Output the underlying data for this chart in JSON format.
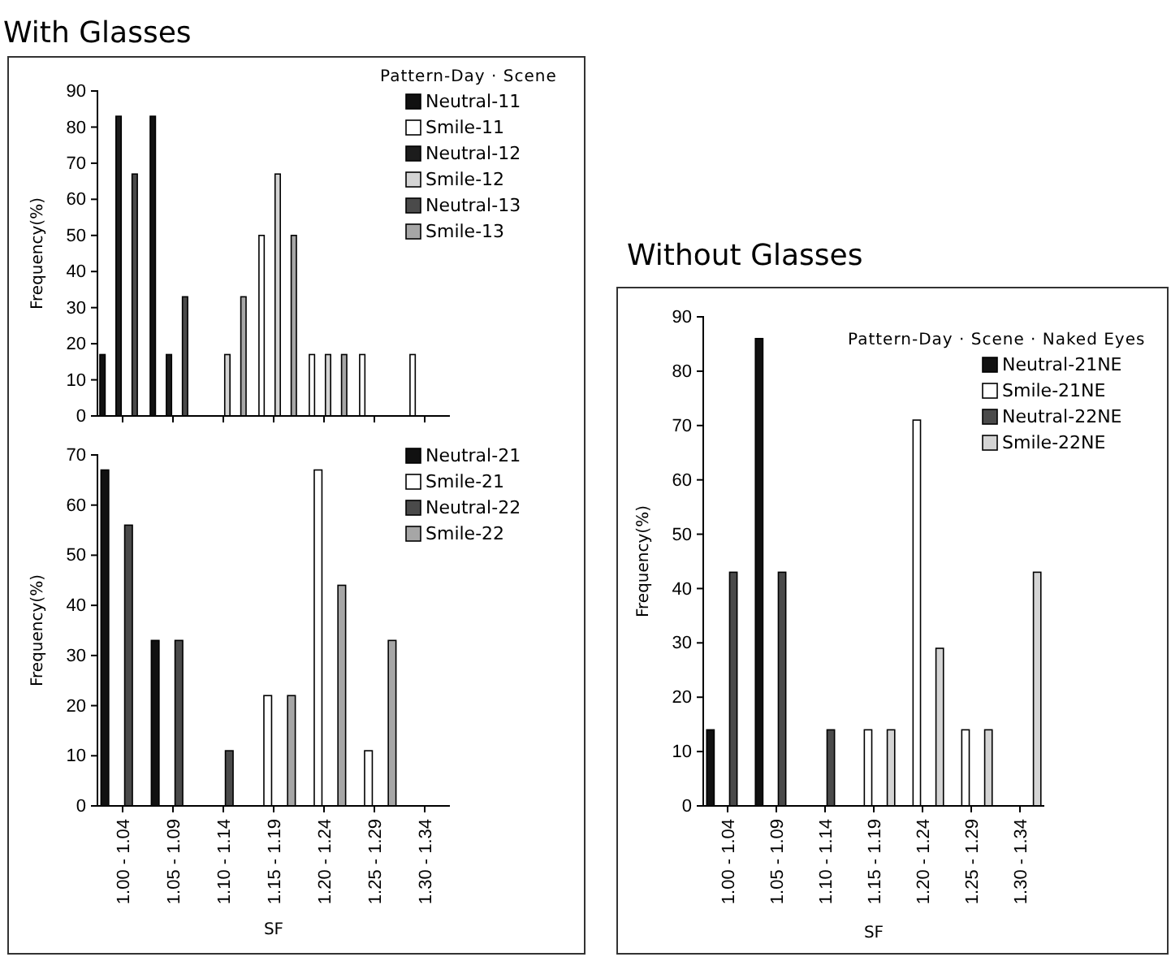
{
  "chart_data": [
    {
      "type": "bar",
      "title": "With Glasses",
      "ylabel": "Frequency(%)",
      "legend_title": "Pattern-Day · Scene",
      "categories": [
        null,
        null,
        null,
        null,
        null,
        null,
        null
      ],
      "ylim": [
        0,
        90
      ],
      "yticks": [
        0,
        10,
        20,
        30,
        40,
        50,
        60,
        70,
        80,
        90
      ],
      "tick_labels": "y",
      "legend": "top right",
      "grid": false,
      "series": [
        {
          "name": "Neutral-11",
          "color": "#111111",
          "values": [
            17,
            83,
            0,
            0,
            0,
            0,
            0
          ]
        },
        {
          "name": "Smile-11",
          "color": "#ffffff",
          "values": [
            0,
            0,
            0,
            50,
            17,
            17,
            17
          ]
        },
        {
          "name": "Neutral-12",
          "color": "#1c1c1c",
          "values": [
            83,
            17,
            0,
            0,
            0,
            0,
            0
          ]
        },
        {
          "name": "Smile-12",
          "color": "#d4d4d4",
          "values": [
            0,
            0,
            17,
            67,
            17,
            0,
            0
          ]
        },
        {
          "name": "Neutral-13",
          "color": "#4a4a4a",
          "values": [
            67,
            33,
            0,
            0,
            0,
            0,
            0
          ]
        },
        {
          "name": "Smile-13",
          "color": "#a6a6a6",
          "values": [
            0,
            0,
            33,
            50,
            17,
            0,
            0
          ]
        }
      ]
    },
    {
      "type": "bar",
      "xlabel": "SF",
      "ylabel": "Frequency(%)",
      "categories": [
        "1.00 - 1.04",
        "1.05 - 1.09",
        "1.10 - 1.14",
        "1.15 - 1.19",
        "1.20 - 1.24",
        "1.25 - 1.29",
        "1.30 - 1.34"
      ],
      "ylim": [
        0,
        70
      ],
      "yticks": [
        0,
        10,
        20,
        30,
        40,
        50,
        60,
        70
      ],
      "legend": "top right",
      "grid": false,
      "series": [
        {
          "name": "Neutral-21",
          "color": "#111111",
          "values": [
            67,
            33,
            0,
            0,
            0,
            0,
            0
          ]
        },
        {
          "name": "Smile-21",
          "color": "#ffffff",
          "values": [
            0,
            0,
            0,
            22,
            67,
            11,
            0
          ]
        },
        {
          "name": "Neutral-22",
          "color": "#4a4a4a",
          "values": [
            56,
            33,
            11,
            0,
            0,
            0,
            0
          ]
        },
        {
          "name": "Smile-22",
          "color": "#a6a6a6",
          "values": [
            0,
            0,
            0,
            22,
            44,
            33,
            0
          ]
        }
      ]
    },
    {
      "type": "bar",
      "title": "Without Glasses",
      "xlabel": "SF",
      "ylabel": "Frequency(%)",
      "legend_title": "Pattern-Day · Scene · Naked Eyes",
      "categories": [
        "1.00 - 1.04",
        "1.05 - 1.09",
        "1.10 - 1.14",
        "1.15 - 1.19",
        "1.20 - 1.24",
        "1.25 - 1.29",
        "1.30 - 1.34"
      ],
      "ylim": [
        0,
        90
      ],
      "yticks": [
        0,
        10,
        20,
        30,
        40,
        50,
        60,
        70,
        80,
        90
      ],
      "legend": "top right",
      "grid": false,
      "series": [
        {
          "name": "Neutral-21NE",
          "color": "#111111",
          "values": [
            14,
            86,
            0,
            0,
            0,
            0,
            0
          ]
        },
        {
          "name": "Smile-21NE",
          "color": "#ffffff",
          "values": [
            0,
            0,
            0,
            14,
            71,
            14,
            0
          ]
        },
        {
          "name": "Neutral-22NE",
          "color": "#4a4a4a",
          "values": [
            43,
            43,
            14,
            0,
            0,
            0,
            0
          ]
        },
        {
          "name": "Smile-22NE",
          "color": "#d4d4d4",
          "values": [
            0,
            0,
            0,
            14,
            29,
            14,
            43
          ]
        }
      ]
    }
  ]
}
